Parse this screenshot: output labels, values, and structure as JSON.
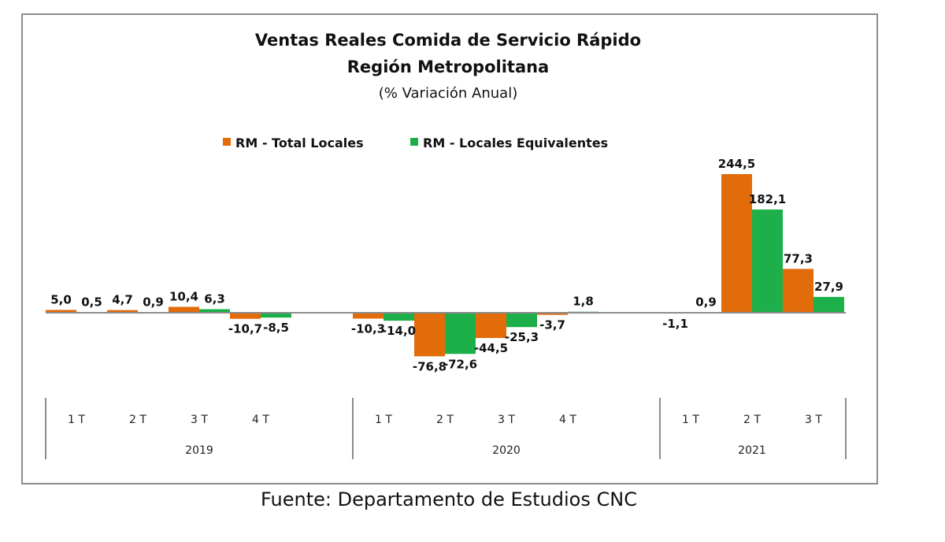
{
  "chart_data": {
    "type": "bar",
    "title": "Ventas Reales Comida de Servicio Rápido",
    "subtitle": "Región Metropolitana",
    "subtitle2": "(% Variación Anual)",
    "xlabel": "",
    "ylabel": "",
    "ylim": [
      -100,
      250
    ],
    "grid": false,
    "legend_position": "top-center",
    "groups": [
      {
        "year": "2019",
        "categories": [
          "1 T",
          "2 T",
          "3 T",
          "4 T"
        ]
      },
      {
        "year": "2020",
        "categories": [
          "1 T",
          "2 T",
          "3 T",
          "4 T"
        ]
      },
      {
        "year": "2021",
        "categories": [
          "1 T",
          "2 T",
          "3 T"
        ]
      }
    ],
    "categories": [
      "1 T 2019",
      "2 T 2019",
      "3 T 2019",
      "4 T 2019",
      "1 T 2020",
      "2 T 2020",
      "3 T 2020",
      "4 T 2020",
      "1 T 2021",
      "2 T 2021",
      "3 T 2021"
    ],
    "series": [
      {
        "name": "RM - Total Locales",
        "color": "#e26b0a",
        "values": [
          5.0,
          4.7,
          10.4,
          -10.7,
          -10.3,
          -76.8,
          -44.5,
          -3.7,
          -1.1,
          244.5,
          77.3
        ],
        "labels": [
          "5,0",
          "4,7",
          "10,4",
          "-10,7",
          "-10,3",
          "-76,8",
          "-44,5",
          "-3,7",
          "-1,1",
          "244,5",
          "77,3"
        ]
      },
      {
        "name": "RM - Locales Equivalentes",
        "color": "#1db04a",
        "values": [
          0.5,
          0.9,
          6.3,
          -8.5,
          -14.0,
          -72.6,
          -25.3,
          1.8,
          0.9,
          182.1,
          27.9
        ],
        "labels": [
          "0,5",
          "0,9",
          "6,3",
          "-8,5",
          "-14,0",
          "-72,6",
          "-25,3",
          "1,8",
          "0,9",
          "182,1",
          "27,9"
        ]
      }
    ]
  },
  "footer": "Fuente: Departamento de Estudios CNC"
}
